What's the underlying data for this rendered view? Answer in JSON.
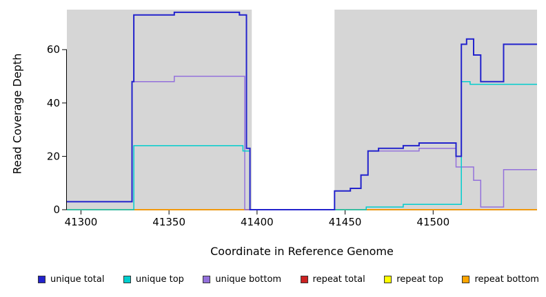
{
  "chart_data": {
    "type": "line",
    "step": true,
    "title": "",
    "xlabel": "Coordinate in Reference Genome",
    "ylabel": "Read Coverage Depth",
    "xlim": [
      41292,
      41559
    ],
    "ylim": [
      0,
      75
    ],
    "x_ticks": [
      41300,
      41350,
      41400,
      41450,
      41500
    ],
    "y_ticks": [
      0,
      20,
      40,
      60
    ],
    "grid": false,
    "legend_position": "bottom",
    "band_color": "#D6D6D6",
    "shaded_regions": [
      [
        41292,
        41397
      ],
      [
        41444,
        41559
      ]
    ],
    "draw_order": [
      4,
      3,
      5,
      2,
      1,
      0
    ],
    "series": [
      {
        "name": "unique-total",
        "label": "unique total",
        "color": "#2222CC",
        "lw": 2,
        "points": [
          [
            41292,
            3
          ],
          [
            41329,
            48
          ],
          [
            41330,
            73
          ],
          [
            41353,
            74
          ],
          [
            41390,
            73
          ],
          [
            41394,
            23
          ],
          [
            41396,
            0
          ],
          [
            41444,
            7
          ],
          [
            41453,
            8
          ],
          [
            41459,
            13
          ],
          [
            41463,
            22
          ],
          [
            41469,
            23
          ],
          [
            41483,
            24
          ],
          [
            41492,
            25
          ],
          [
            41513,
            20
          ],
          [
            41516,
            62
          ],
          [
            41519,
            64
          ],
          [
            41523,
            58
          ],
          [
            41527,
            48
          ],
          [
            41540,
            62
          ],
          [
            41559,
            62
          ]
        ]
      },
      {
        "name": "unique-top",
        "label": "unique top",
        "color": "#00CDCD",
        "lw": 1.5,
        "points": [
          [
            41292,
            0
          ],
          [
            41330,
            24
          ],
          [
            41392,
            22
          ],
          [
            41396,
            0
          ],
          [
            41462,
            1
          ],
          [
            41483,
            2
          ],
          [
            41516,
            48
          ],
          [
            41521,
            47
          ],
          [
            41559,
            47
          ]
        ]
      },
      {
        "name": "unique-bottom",
        "label": "unique bottom",
        "color": "#9370DB",
        "lw": 1.5,
        "points": [
          [
            41292,
            3
          ],
          [
            41329,
            48
          ],
          [
            41353,
            50
          ],
          [
            41393,
            0
          ],
          [
            41444,
            7
          ],
          [
            41453,
            8
          ],
          [
            41459,
            13
          ],
          [
            41463,
            22
          ],
          [
            41492,
            23
          ],
          [
            41513,
            16
          ],
          [
            41523,
            11
          ],
          [
            41527,
            1
          ],
          [
            41540,
            15
          ],
          [
            41559,
            15
          ]
        ]
      },
      {
        "name": "repeat-total",
        "label": "repeat total",
        "color": "#CC2222",
        "lw": 1.5,
        "points": [
          [
            41292,
            0
          ],
          [
            41397,
            0
          ],
          null,
          [
            41444,
            0
          ],
          [
            41559,
            0
          ]
        ]
      },
      {
        "name": "repeat-top",
        "label": "repeat top",
        "color": "#FFFF00",
        "lw": 1.5,
        "points": [
          [
            41292,
            0
          ],
          [
            41397,
            0
          ],
          null,
          [
            41444,
            0
          ],
          [
            41559,
            0
          ]
        ]
      },
      {
        "name": "repeat-bottom",
        "label": "repeat bottom",
        "color": "#FFA500",
        "lw": 1.5,
        "points": [
          [
            41292,
            0
          ],
          [
            41397,
            0
          ],
          null,
          [
            41444,
            0
          ],
          [
            41559,
            0
          ]
        ]
      }
    ]
  }
}
